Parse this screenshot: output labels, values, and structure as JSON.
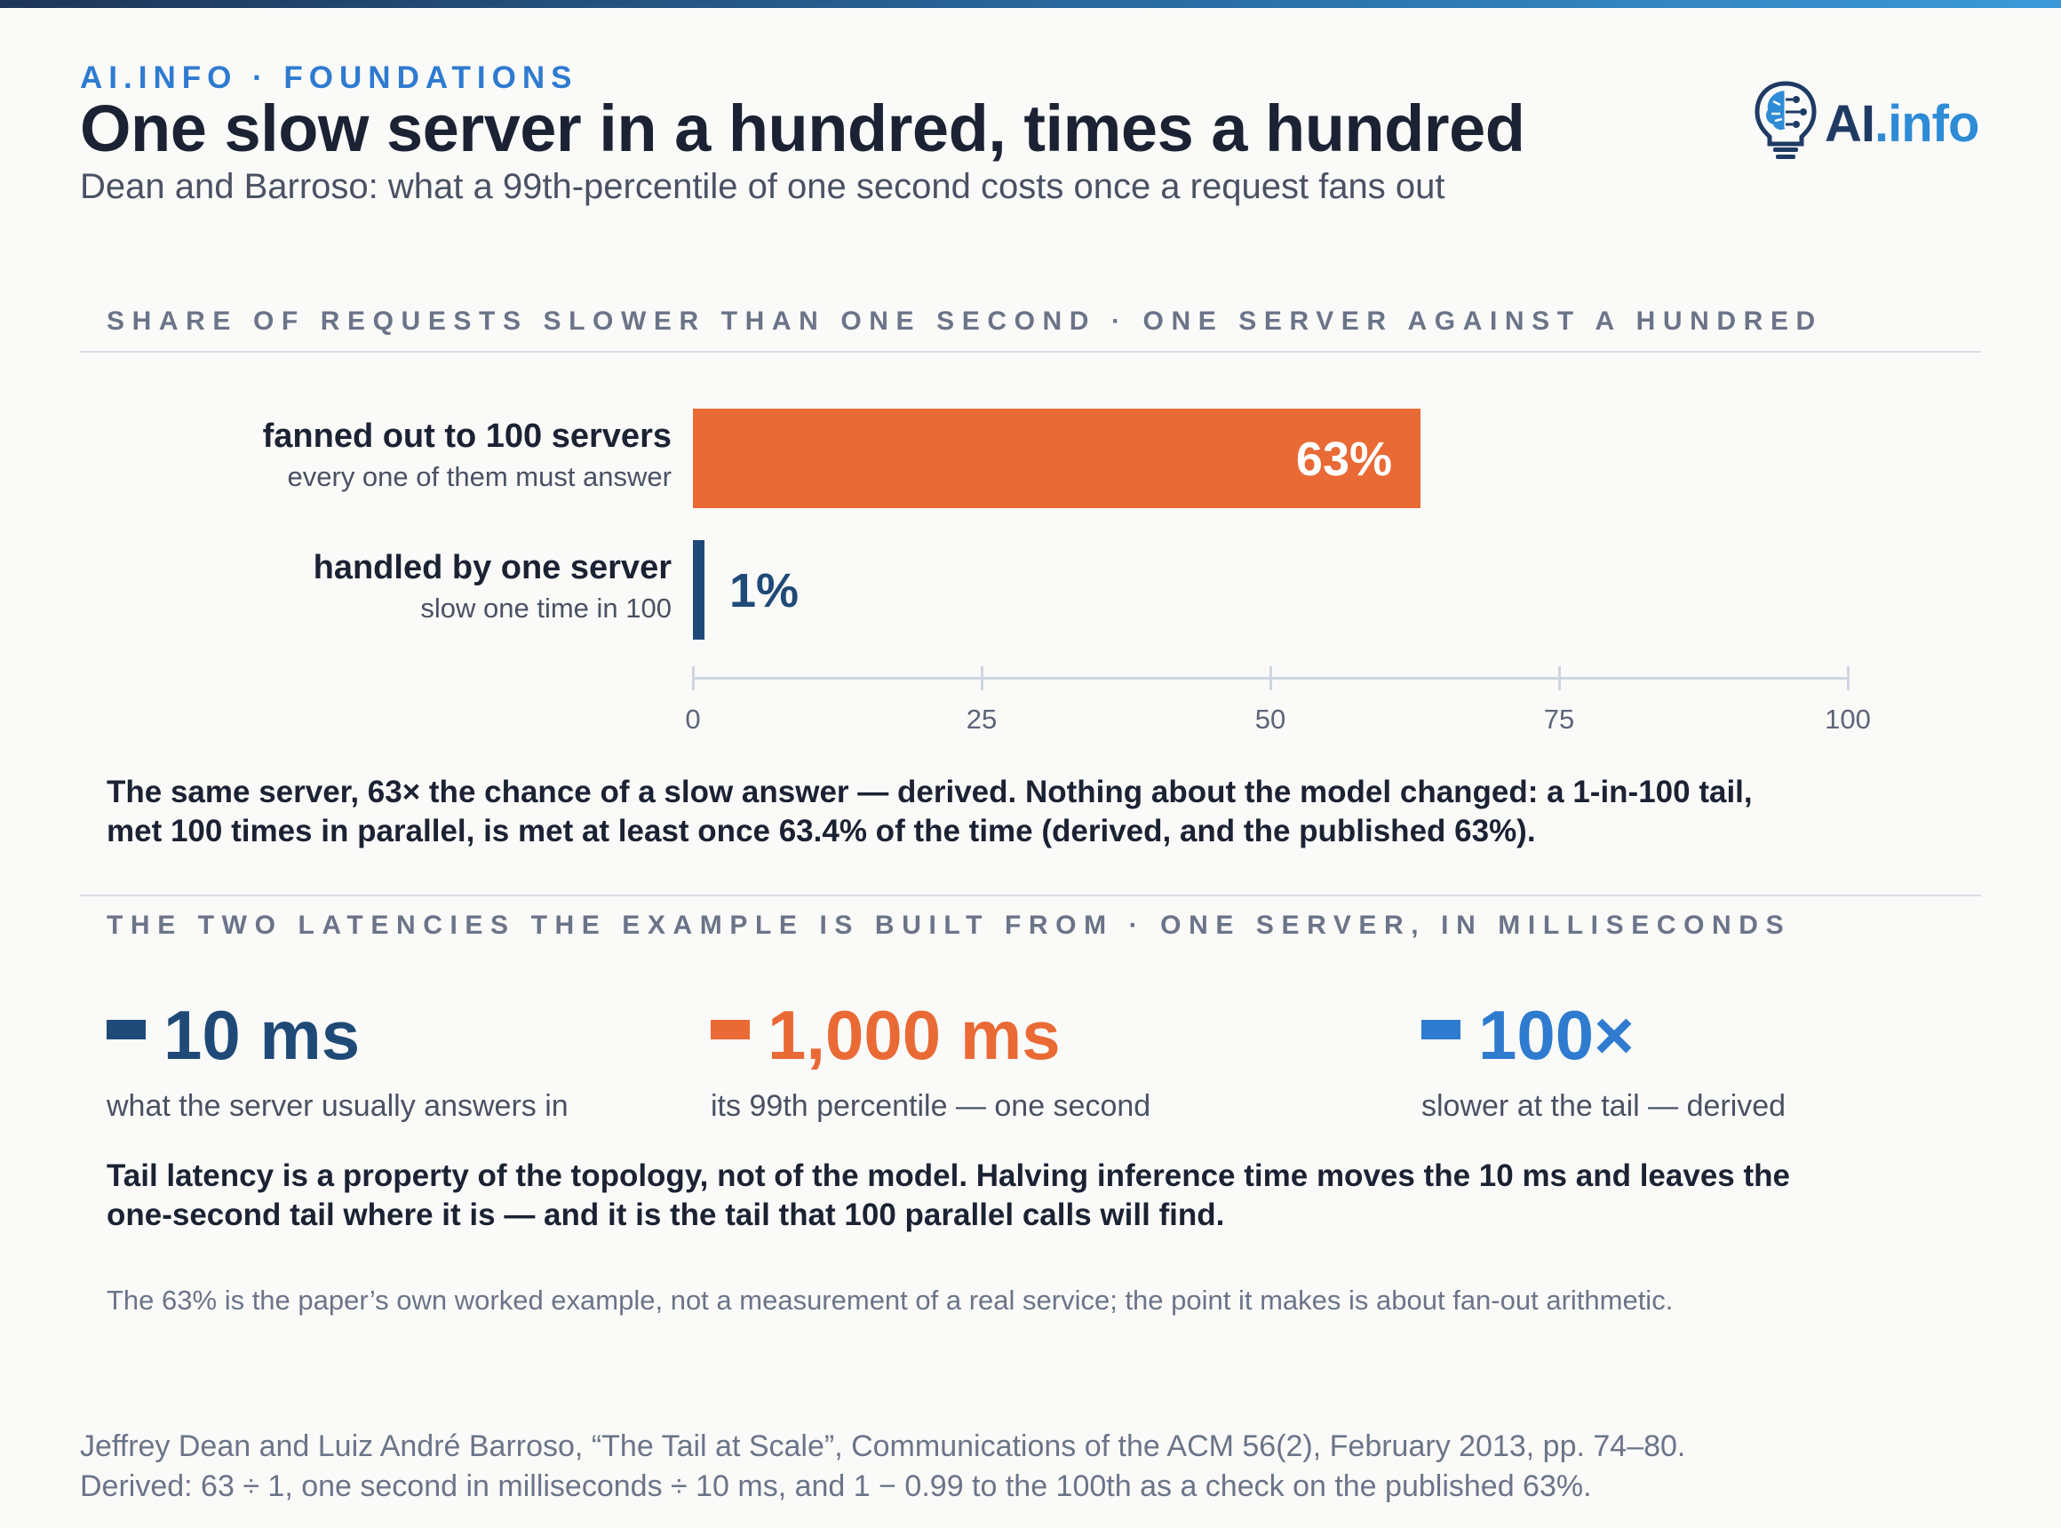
{
  "header": {
    "kicker": "AI.INFO · FOUNDATIONS",
    "title": "One slow server in a hundred, times a hundred",
    "subtitle": "Dean and Barroso: what a 99th-percentile of one second costs once a request fans out"
  },
  "logo": {
    "text_ai": "AI",
    "text_info": ".info",
    "icon": "lightbulb-brain-icon"
  },
  "chart_section": {
    "heading": "SHARE OF REQUESTS SLOWER THAN ONE SECOND · ONE SERVER AGAINST A HUNDRED"
  },
  "chart_data": {
    "type": "bar",
    "orientation": "horizontal",
    "categories": [
      "fanned out to 100 servers",
      "handled by one server"
    ],
    "sublabels": [
      "every one of them must answer",
      "slow one time in 100"
    ],
    "values": [
      63,
      1
    ],
    "value_labels": [
      "63%",
      "1%"
    ],
    "colors": [
      "#e96a35",
      "#1f4a78"
    ],
    "xlim": [
      0,
      100
    ],
    "xticks": [
      "0",
      "25",
      "50",
      "75",
      "100"
    ],
    "grid": false
  },
  "chart_caption": "The same server, 63× the chance of a slow answer — derived. Nothing about the model changed: a 1-in-100 tail, met 100 times in parallel, is met at least once 63.4% of the time (derived, and the published 63%).",
  "latency_section": {
    "heading": "THE TWO LATENCIES THE EXAMPLE IS BUILT FROM · ONE SERVER, IN MILLISECONDS",
    "stats": [
      {
        "value": "10 ms",
        "label": "what the server usually answers in",
        "color": "#1f4a78"
      },
      {
        "value": "1,000 ms",
        "label": "its 99th percentile — one second",
        "color": "#e96a35"
      },
      {
        "value": "100×",
        "label": "slower at the tail — derived",
        "color": "#2e7bd0"
      }
    ],
    "takeaway": "Tail latency is a property of the topology, not of the model. Halving inference time moves the 10 ms and leaves the one-second tail where it is — and it is the tail that 100 parallel calls will find.",
    "note": "The 63% is the paper’s own worked example, not a measurement of a real service; the point it makes is about fan-out arithmetic."
  },
  "footer": {
    "line1": "Jeffrey Dean and Luiz André Barroso, “The Tail at Scale”, Communications of the ACM 56(2), February 2013, pp. 74–80.",
    "line2": "Derived: 63 ÷ 1, one second in milliseconds ÷ 10 ms, and 1 − 0.99 to the 100th as a check on the published 63%."
  }
}
